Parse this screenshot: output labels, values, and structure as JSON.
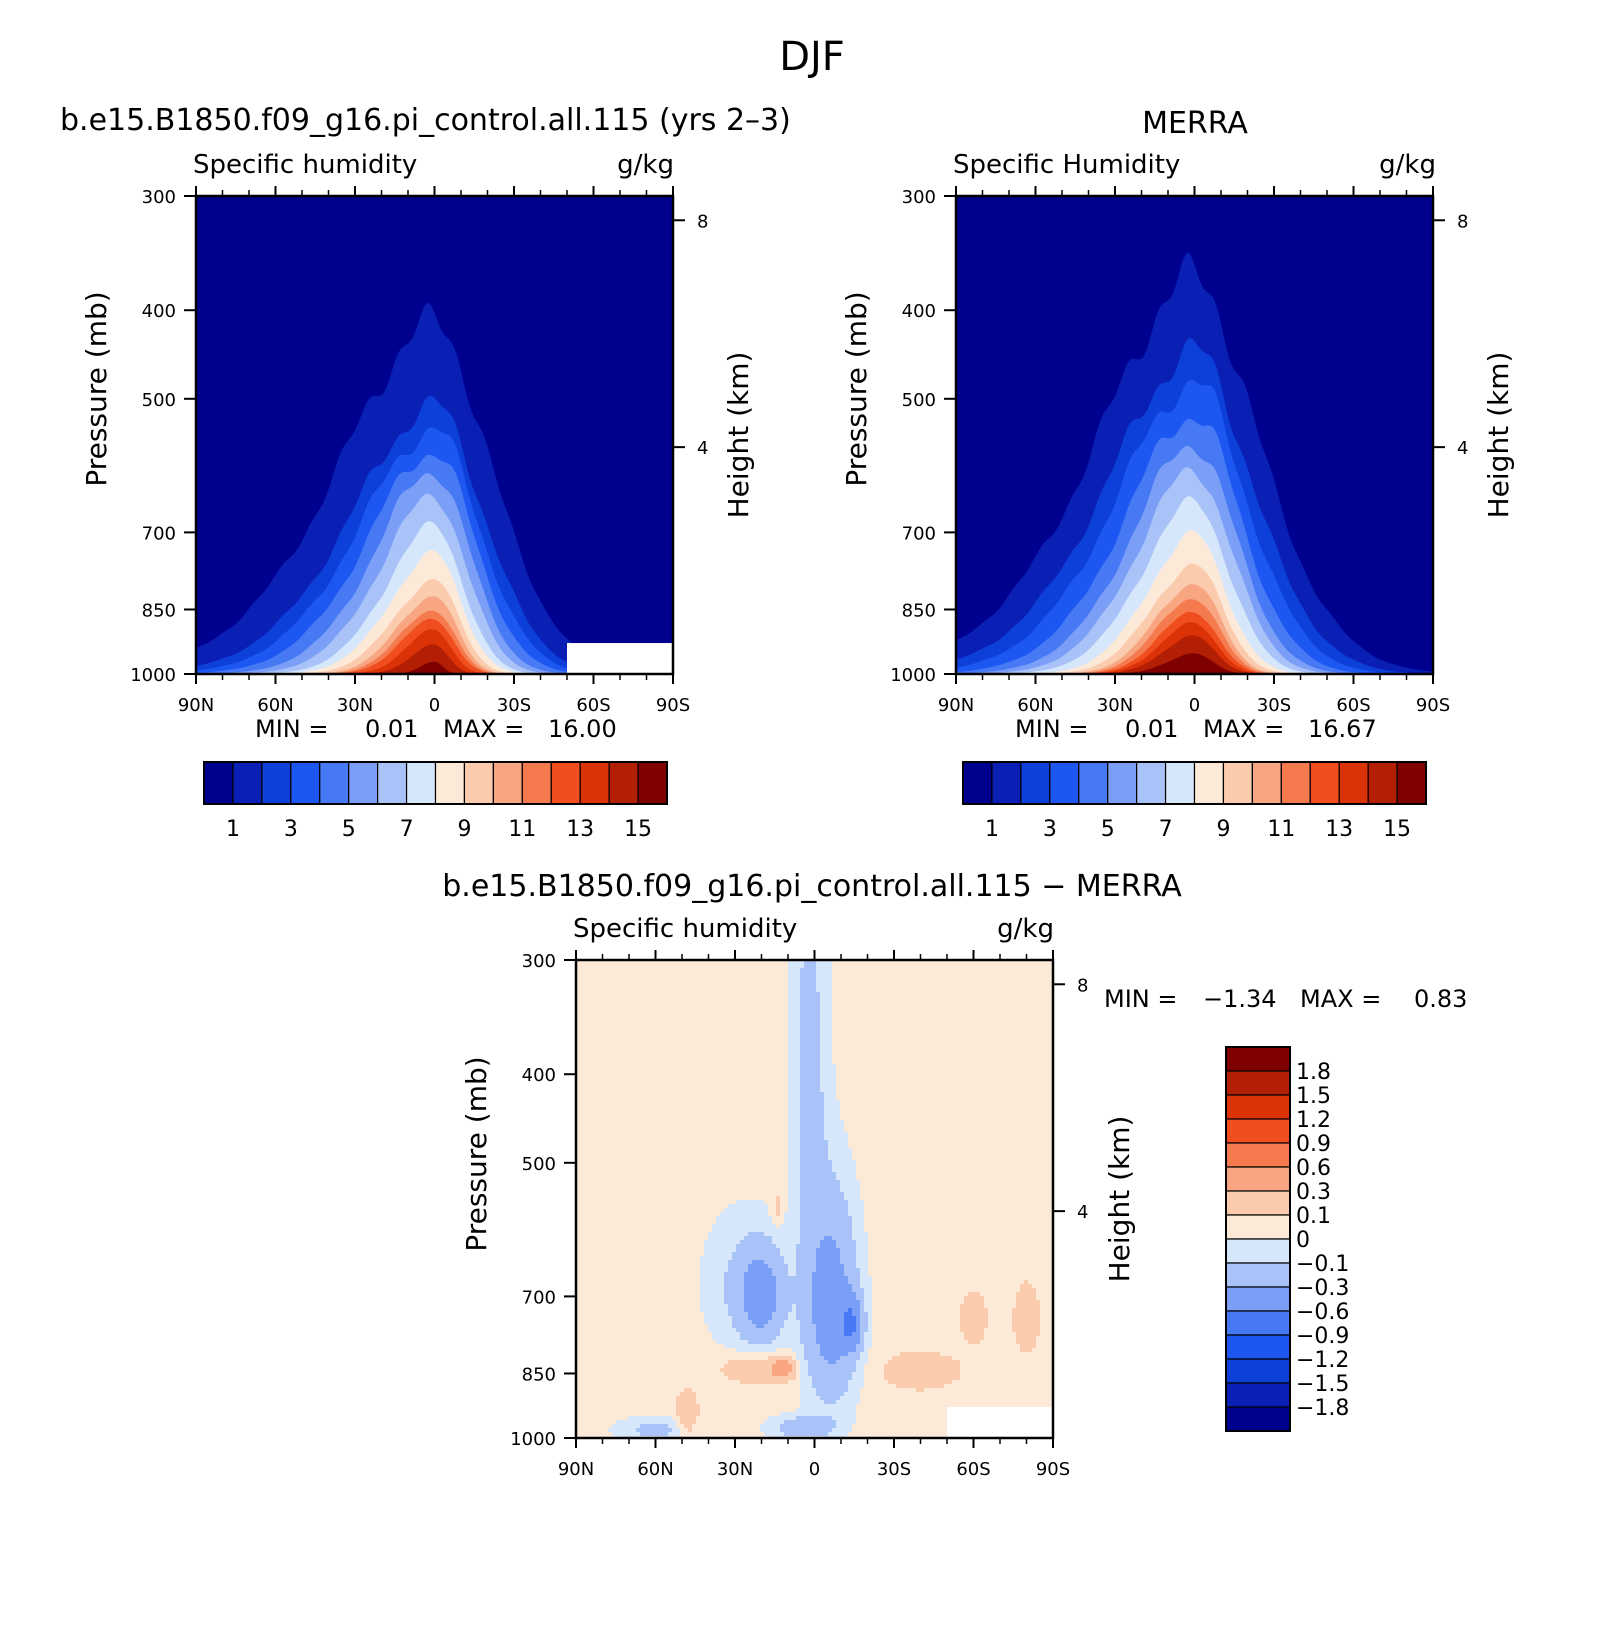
{
  "figure": {
    "title": "DJF"
  },
  "panels": [
    {
      "id": "model",
      "title": "b.e15.B1850.f09_g16.pi_control.all.115 (yrs 2–3)",
      "left_label": "Specific humidity",
      "right_label": "g/kg",
      "ylabel": "Pressure (mb)",
      "ylabel_right": "Height (km)",
      "stats": {
        "min_label": "MIN =",
        "min": "0.01",
        "max_label": "MAX =",
        "max": "16.00"
      }
    },
    {
      "id": "merra",
      "title": "MERRA",
      "left_label": "Specific Humidity",
      "right_label": "g/kg",
      "ylabel": "Pressure (mb)",
      "ylabel_right": "Height (km)",
      "stats": {
        "min_label": "MIN =",
        "min": "0.01",
        "max_label": "MAX =",
        "max": "16.67"
      }
    },
    {
      "id": "diff",
      "title": "b.e15.B1850.f09_g16.pi_control.all.115 − MERRA",
      "left_label": "Specific humidity",
      "right_label": "g/kg",
      "ylabel": "Pressure (mb)",
      "ylabel_right": "Height (km)",
      "stats": {
        "min_label": "MIN =",
        "min": "−1.34",
        "max_label": "MAX =",
        "max": "0.83"
      }
    }
  ],
  "chart_data": [
    {
      "type": "heatmap",
      "title": "b.e15.B1850.f09_g16.pi_control.all.115 (yrs 2–3)",
      "xlabel": "",
      "ylabel": "Pressure (mb)",
      "ylabel_right": "Height (km)",
      "units": "g/kg",
      "x_ticks": [
        "90N",
        "60N",
        "30N",
        "0",
        "30S",
        "60S",
        "90S"
      ],
      "x_tick_values": [
        90,
        60,
        30,
        0,
        -30,
        -60,
        -90
      ],
      "y_ticks": [
        "300",
        "400",
        "500",
        "700",
        "850",
        "1000"
      ],
      "y_tick_values": [
        300,
        400,
        500,
        700,
        850,
        1000
      ],
      "y_scale": "log",
      "y_right_ticks": [
        "8",
        "4"
      ],
      "y_right_tick_values": [
        8,
        4
      ],
      "xlim": [
        90,
        -90
      ],
      "ylim": [
        1000,
        300
      ],
      "colorbar_labels": [
        "1",
        "3",
        "5",
        "7",
        "9",
        "11",
        "13",
        "15"
      ],
      "levels": [
        1,
        2,
        3,
        4,
        5,
        6,
        7,
        8,
        9,
        10,
        11,
        12,
        13,
        14,
        15
      ],
      "colors": [
        "#00008f",
        "#0a1fb4",
        "#0d3fd9",
        "#1d57f2",
        "#4779f5",
        "#7b9ff7",
        "#a9c3f9",
        "#d6e7fb",
        "#fde9d8",
        "#fbcbae",
        "#f8a581",
        "#f57a4d",
        "#f04e1e",
        "#db3307",
        "#b21f05",
        "#7f0000"
      ],
      "min": 0.01,
      "max": 16.0,
      "surface_pressure_mask": {
        "from_lat": -50,
        "pressure_top": 925
      },
      "ridge": [
        {
          "level": 1,
          "top": 415,
          "spread": 48,
          "skew": 0.25
        },
        {
          "level": 2,
          "top": 510,
          "spread": 40,
          "skew": 0.25
        },
        {
          "level": 3,
          "top": 540,
          "spread": 36,
          "skew": 0.25
        },
        {
          "level": 4,
          "top": 570,
          "spread": 32,
          "skew": 0.25
        },
        {
          "level": 5,
          "top": 600,
          "spread": 28,
          "skew": 0.25
        },
        {
          "level": 6,
          "top": 640,
          "spread": 25,
          "skew": 0.25
        },
        {
          "level": 7,
          "top": 690,
          "spread": 22,
          "skew": 0.25
        },
        {
          "level": 8,
          "top": 740,
          "spread": 20,
          "skew": 0.25
        },
        {
          "level": 9,
          "top": 790,
          "spread": 18,
          "skew": 0.25
        },
        {
          "level": 10,
          "top": 820,
          "spread": 16,
          "skew": 0.25
        },
        {
          "level": 11,
          "top": 850,
          "spread": 15,
          "skew": 0.25
        },
        {
          "level": 12,
          "top": 870,
          "spread": 14,
          "skew": 0.25
        },
        {
          "level": 13,
          "top": 895,
          "spread": 12,
          "skew": 0.25
        },
        {
          "level": 14,
          "top": 930,
          "spread": 10,
          "skew": 0.25
        },
        {
          "level": 15,
          "top": 970,
          "spread": 6,
          "skew": 0.25
        }
      ]
    },
    {
      "type": "heatmap",
      "title": "MERRA",
      "xlabel": "",
      "ylabel": "Pressure (mb)",
      "ylabel_right": "Height (km)",
      "units": "g/kg",
      "x_ticks": [
        "90N",
        "60N",
        "30N",
        "0",
        "30S",
        "60S",
        "90S"
      ],
      "x_tick_values": [
        90,
        60,
        30,
        0,
        -30,
        -60,
        -90
      ],
      "y_ticks": [
        "300",
        "400",
        "500",
        "700",
        "850",
        "1000"
      ],
      "y_tick_values": [
        300,
        400,
        500,
        700,
        850,
        1000
      ],
      "y_scale": "log",
      "y_right_ticks": [
        "8",
        "4"
      ],
      "y_right_tick_values": [
        8,
        4
      ],
      "xlim": [
        90,
        -90
      ],
      "ylim": [
        1000,
        300
      ],
      "colorbar_labels": [
        "1",
        "3",
        "5",
        "7",
        "9",
        "11",
        "13",
        "15"
      ],
      "levels": [
        1,
        2,
        3,
        4,
        5,
        6,
        7,
        8,
        9,
        10,
        11,
        12,
        13,
        14,
        15
      ],
      "colors": [
        "#00008f",
        "#0a1fb4",
        "#0d3fd9",
        "#1d57f2",
        "#4779f5",
        "#7b9ff7",
        "#a9c3f9",
        "#d6e7fb",
        "#fde9d8",
        "#fbcbae",
        "#f8a581",
        "#f57a4d",
        "#f04e1e",
        "#db3307",
        "#b21f05",
        "#7f0000"
      ],
      "min": 0.01,
      "max": 16.67,
      "surface_pressure_mask": null,
      "ridge": [
        {
          "level": 1,
          "top": 370,
          "spread": 52,
          "skew": 0.2
        },
        {
          "level": 2,
          "top": 445,
          "spread": 45,
          "skew": 0.2
        },
        {
          "level": 3,
          "top": 480,
          "spread": 40,
          "skew": 0.2
        },
        {
          "level": 4,
          "top": 520,
          "spread": 35,
          "skew": 0.2
        },
        {
          "level": 5,
          "top": 560,
          "spread": 31,
          "skew": 0.2
        },
        {
          "level": 6,
          "top": 600,
          "spread": 28,
          "skew": 0.2
        },
        {
          "level": 7,
          "top": 650,
          "spread": 25,
          "skew": 0.2
        },
        {
          "level": 8,
          "top": 705,
          "spread": 22,
          "skew": 0.2
        },
        {
          "level": 9,
          "top": 760,
          "spread": 20,
          "skew": 0.2
        },
        {
          "level": 10,
          "top": 795,
          "spread": 18,
          "skew": 0.2
        },
        {
          "level": 11,
          "top": 825,
          "spread": 17,
          "skew": 0.2
        },
        {
          "level": 12,
          "top": 855,
          "spread": 16,
          "skew": 0.2
        },
        {
          "level": 13,
          "top": 880,
          "spread": 15,
          "skew": 0.2
        },
        {
          "level": 14,
          "top": 910,
          "spread": 14,
          "skew": 0.2
        },
        {
          "level": 15,
          "top": 950,
          "spread": 12,
          "skew": 0.2
        }
      ]
    },
    {
      "type": "heatmap",
      "title": "b.e15.B1850.f09_g16.pi_control.all.115 − MERRA",
      "xlabel": "",
      "ylabel": "Pressure (mb)",
      "ylabel_right": "Height (km)",
      "units": "g/kg",
      "x_ticks": [
        "90N",
        "60N",
        "30N",
        "0",
        "30S",
        "60S",
        "90S"
      ],
      "x_tick_values": [
        90,
        60,
        30,
        0,
        -30,
        -60,
        -90
      ],
      "y_ticks": [
        "300",
        "400",
        "500",
        "700",
        "850",
        "1000"
      ],
      "y_tick_values": [
        300,
        400,
        500,
        700,
        850,
        1000
      ],
      "y_scale": "log",
      "y_right_ticks": [
        "8",
        "4"
      ],
      "y_right_tick_values": [
        8,
        4
      ],
      "xlim": [
        90,
        -90
      ],
      "ylim": [
        1000,
        300
      ],
      "colorbar_labels": [
        "1.8",
        "1.5",
        "1.2",
        "0.9",
        "0.6",
        "0.3",
        "0.1",
        "0",
        "−0.1",
        "−0.3",
        "−0.6",
        "−0.9",
        "−1.2",
        "−1.5",
        "−1.8"
      ],
      "levels": [
        1.8,
        1.5,
        1.2,
        0.9,
        0.6,
        0.3,
        0.1,
        0,
        -0.1,
        -0.3,
        -0.6,
        -0.9,
        -1.2,
        -1.5,
        -1.8
      ],
      "colors": [
        "#7f0000",
        "#b21f05",
        "#db3307",
        "#f04e1e",
        "#f57a4d",
        "#f8a581",
        "#fbcbae",
        "#fde9d8",
        "#d6e7fb",
        "#a9c3f9",
        "#7b9ff7",
        "#4779f5",
        "#1d57f2",
        "#0d3fd9",
        "#0a1fb4",
        "#00008f"
      ],
      "min": -1.34,
      "max": 0.83,
      "background_value": 0.05,
      "surface_pressure_mask": {
        "from_lat": -50,
        "pressure_top": 925
      },
      "features": [
        {
          "lat": 2,
          "p": 390,
          "dlat": 7,
          "dp": 220,
          "value": -0.2
        },
        {
          "lat": 28,
          "p": 680,
          "dlat": 15,
          "dp": 120,
          "value": -0.15
        },
        {
          "lat": -6,
          "p": 720,
          "dlat": 10,
          "dp": 180,
          "value": -0.5
        },
        {
          "lat": 20,
          "p": 700,
          "dlat": 8,
          "dp": 80,
          "value": -0.45
        },
        {
          "lat": -14,
          "p": 750,
          "dlat": 4,
          "dp": 50,
          "value": -0.5
        },
        {
          "lat": 22,
          "p": 840,
          "dlat": 13,
          "dp": 30,
          "value": 0.2
        },
        {
          "lat": 12,
          "p": 840,
          "dlat": 4,
          "dp": 22,
          "value": 0.4
        },
        {
          "lat": -40,
          "p": 845,
          "dlat": 13,
          "dp": 35,
          "value": 0.2
        },
        {
          "lat": -60,
          "p": 740,
          "dlat": 6,
          "dp": 60,
          "value": 0.1
        },
        {
          "lat": -80,
          "p": 740,
          "dlat": 6,
          "dp": 80,
          "value": 0.1
        },
        {
          "lat": 60,
          "p": 980,
          "dlat": 15,
          "dp": 30,
          "value": -0.2
        },
        {
          "lat": 5,
          "p": 975,
          "dlat": 12,
          "dp": 30,
          "value": -0.25
        },
        {
          "lat": 48,
          "p": 950,
          "dlat": 4,
          "dp": 60,
          "value": 0.2
        },
        {
          "lat": 14,
          "p": 560,
          "dlat": 2,
          "dp": 25,
          "value": 0.12
        }
      ]
    }
  ]
}
